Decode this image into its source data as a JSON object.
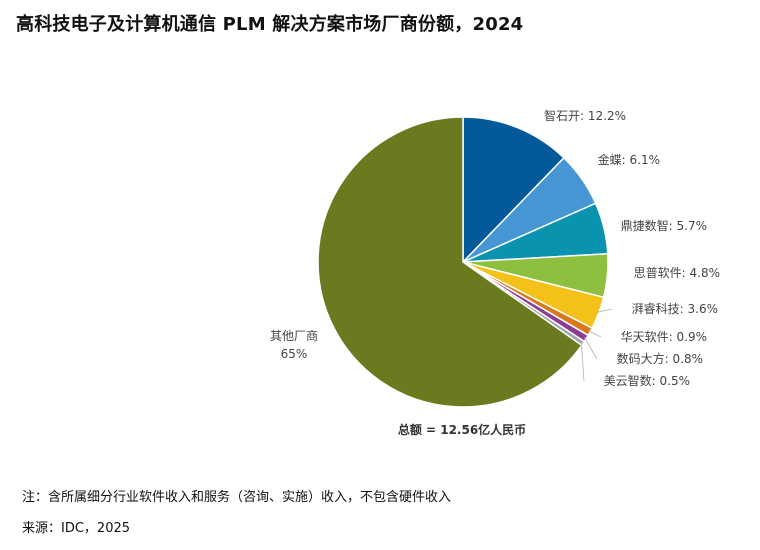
{
  "chart_data": {
    "type": "pie",
    "title": "高科技电子及计算机通信 PLM 解决方案市场厂商份额，2024",
    "slices": [
      {
        "label": "智石开",
        "value_text": "12.2%",
        "value": 12.2,
        "color": "#035a9a"
      },
      {
        "label": "金蝶",
        "value_text": "6.1%",
        "value": 6.1,
        "color": "#4596d2"
      },
      {
        "label": "鼎捷数智",
        "value_text": "5.7%",
        "value": 5.7,
        "color": "#0a93ae"
      },
      {
        "label": "思普软件",
        "value_text": "4.8%",
        "value": 4.8,
        "color": "#8cc03e"
      },
      {
        "label": "湃睿科技",
        "value_text": "3.6%",
        "value": 3.6,
        "color": "#f4c118"
      },
      {
        "label": "华天软件",
        "value_text": "0.9%",
        "value": 0.9,
        "color": "#d9791b"
      },
      {
        "label": "数码大方",
        "value_text": "0.8%",
        "value": 0.8,
        "color": "#8c3d92"
      },
      {
        "label": "美云智数",
        "value_text": "0.5%",
        "value": 0.5,
        "color": "#9aa3ad"
      },
      {
        "label": "其他厂商",
        "value_text": "65%",
        "value": 65,
        "color": "#6a7a1e"
      }
    ],
    "total_label": "总额 = 12.56亿人民币"
  },
  "footer": {
    "note": "注：含所属细分行业软件收入和服务（咨询、实施）收入，不包含硬件收入",
    "source": "来源：IDC，2025"
  }
}
